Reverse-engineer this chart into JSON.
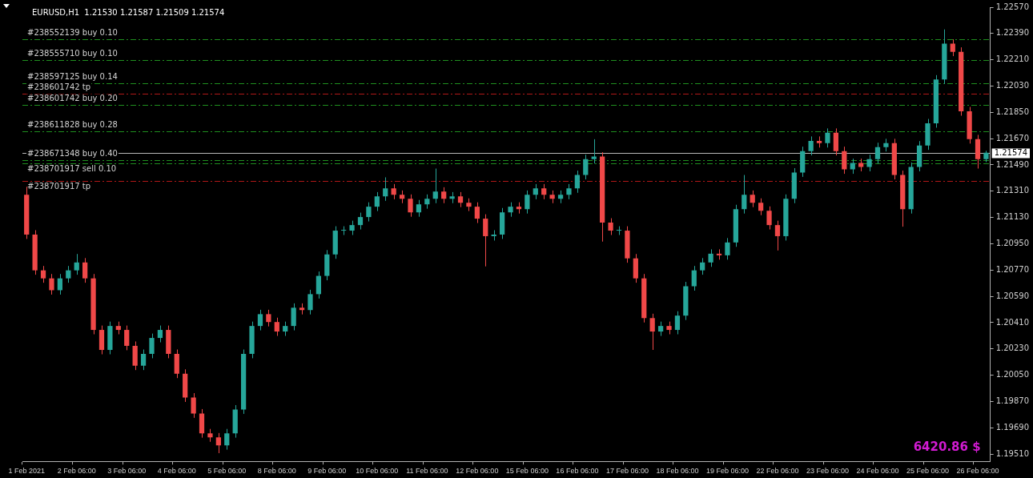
{
  "chart_data": {
    "type": "candlestick",
    "title": "EURUSD,H1  1.21530 1.21587 1.21509 1.21574",
    "annotations": [
      "6420.86 $"
    ],
    "categories": [
      "1 Feb 2021",
      null,
      null,
      null,
      null,
      null,
      "2 Feb 06:00",
      null,
      null,
      null,
      null,
      null,
      "3 Feb 06:00",
      null,
      null,
      null,
      null,
      null,
      "4 Feb 06:00",
      null,
      null,
      null,
      null,
      null,
      "5 Feb 06:00",
      null,
      null,
      null,
      null,
      null,
      "8 Feb 06:00",
      null,
      null,
      null,
      null,
      null,
      "9 Feb 06:00",
      null,
      null,
      null,
      null,
      null,
      "10 Feb 06:00",
      null,
      null,
      null,
      null,
      null,
      "11 Feb 06:00",
      null,
      null,
      null,
      null,
      null,
      "12 Feb 06:00",
      null,
      null,
      null,
      null,
      null,
      "15 Feb 06:00",
      null,
      null,
      null,
      null,
      null,
      "16 Feb 06:00",
      null,
      null,
      null,
      null,
      null,
      "17 Feb 06:00",
      null,
      null,
      null,
      null,
      null,
      "18 Feb 06:00",
      null,
      null,
      null,
      null,
      null,
      "19 Feb 06:00",
      null,
      null,
      null,
      null,
      null,
      "22 Feb 06:00",
      null,
      null,
      null,
      null,
      null,
      "23 Feb 06:00",
      null,
      null,
      null,
      null,
      null,
      "24 Feb 06:00",
      null,
      null,
      null,
      null,
      null,
      "25 Feb 06:00",
      null,
      null,
      null,
      null,
      null,
      "26 Feb 06:00",
      null
    ],
    "ohlc": [
      [
        1.21285,
        1.2134,
        1.20983,
        1.21013
      ],
      [
        1.21013,
        1.21043,
        1.20738,
        1.20768
      ],
      [
        1.20768,
        1.20798,
        1.20683,
        1.20713
      ],
      [
        1.20713,
        1.20743,
        1.20602,
        1.20632
      ],
      [
        1.20632,
        1.20743,
        1.20602,
        1.20713
      ],
      [
        1.20713,
        1.20798,
        1.20683,
        1.20768
      ],
      [
        1.20768,
        1.2088,
        1.20738,
        1.20822
      ],
      [
        1.20822,
        1.20852,
        1.20683,
        1.20713
      ],
      [
        1.20713,
        1.20743,
        1.2033,
        1.2036
      ],
      [
        1.2036,
        1.2039,
        1.20193,
        1.20223
      ],
      [
        1.20223,
        1.20417,
        1.20193,
        1.20387
      ],
      [
        1.20387,
        1.20417,
        1.2033,
        1.2036
      ],
      [
        1.2036,
        1.2039,
        1.20221,
        1.20251
      ],
      [
        1.20251,
        1.20281,
        1.20085,
        1.20115
      ],
      [
        1.20115,
        1.20226,
        1.20085,
        1.20196
      ],
      [
        1.20196,
        1.20335,
        1.20166,
        1.20305
      ],
      [
        1.20305,
        1.2039,
        1.20275,
        1.2036
      ],
      [
        1.2036,
        1.2039,
        1.20166,
        1.20196
      ],
      [
        1.20196,
        1.20226,
        1.2003,
        1.2006
      ],
      [
        1.2006,
        1.2009,
        1.19867,
        1.19897
      ],
      [
        1.19897,
        1.19927,
        1.19758,
        1.19788
      ],
      [
        1.19788,
        1.19818,
        1.19622,
        1.19652
      ],
      [
        1.19652,
        1.19682,
        1.19594,
        1.19624
      ],
      [
        1.19624,
        1.19654,
        1.19516,
        1.1957
      ],
      [
        1.1957,
        1.19682,
        1.1954,
        1.19652
      ],
      [
        1.19652,
        1.19845,
        1.19622,
        1.19815
      ],
      [
        1.19815,
        1.20226,
        1.19785,
        1.20196
      ],
      [
        1.20196,
        1.20417,
        1.20166,
        1.20387
      ],
      [
        1.20387,
        1.20498,
        1.20357,
        1.20468
      ],
      [
        1.20468,
        1.20498,
        1.20384,
        1.20414
      ],
      [
        1.20414,
        1.20444,
        1.20319,
        1.20349
      ],
      [
        1.20349,
        1.20417,
        1.20319,
        1.20387
      ],
      [
        1.20387,
        1.20542,
        1.20357,
        1.20512
      ],
      [
        1.20512,
        1.20542,
        1.20466,
        1.20496
      ],
      [
        1.20496,
        1.20635,
        1.20466,
        1.20605
      ],
      [
        1.20605,
        1.2076,
        1.20575,
        1.2073
      ],
      [
        1.2073,
        1.20907,
        1.207,
        1.20877
      ],
      [
        1.20877,
        1.2107,
        1.20847,
        1.2104
      ],
      [
        1.2104,
        1.2107,
        1.2101,
        1.2104
      ],
      [
        1.2104,
        1.21108,
        1.2101,
        1.21078
      ],
      [
        1.21078,
        1.21163,
        1.21048,
        1.21133
      ],
      [
        1.21133,
        1.21234,
        1.21103,
        1.21204
      ],
      [
        1.21204,
        1.21304,
        1.21174,
        1.21274
      ],
      [
        1.21274,
        1.21405,
        1.21244,
        1.21329
      ],
      [
        1.21329,
        1.21359,
        1.21255,
        1.21285
      ],
      [
        1.21285,
        1.21315,
        1.21228,
        1.21258
      ],
      [
        1.21258,
        1.21288,
        1.21135,
        1.21165
      ],
      [
        1.21165,
        1.2125,
        1.21135,
        1.2122
      ],
      [
        1.2122,
        1.21288,
        1.2119,
        1.21258
      ],
      [
        1.21258,
        1.21465,
        1.21228,
        1.21307
      ],
      [
        1.21307,
        1.21337,
        1.21228,
        1.21258
      ],
      [
        1.21258,
        1.21304,
        1.21228,
        1.21274
      ],
      [
        1.21274,
        1.21304,
        1.21201,
        1.21231
      ],
      [
        1.21231,
        1.21261,
        1.21174,
        1.21204
      ],
      [
        1.21204,
        1.21234,
        1.21092,
        1.21122
      ],
      [
        1.21122,
        1.21152,
        1.20795,
        1.21002
      ],
      [
        1.21002,
        1.21043,
        1.20972,
        1.21013
      ],
      [
        1.21013,
        1.21195,
        1.20983,
        1.21165
      ],
      [
        1.21165,
        1.21234,
        1.21135,
        1.21204
      ],
      [
        1.21204,
        1.21234,
        1.21157,
        1.21187
      ],
      [
        1.21187,
        1.21315,
        1.21157,
        1.21285
      ],
      [
        1.21285,
        1.21359,
        1.21255,
        1.21329
      ],
      [
        1.21329,
        1.21359,
        1.21255,
        1.21285
      ],
      [
        1.21285,
        1.21315,
        1.21228,
        1.21258
      ],
      [
        1.21258,
        1.21315,
        1.21228,
        1.21285
      ],
      [
        1.21285,
        1.21359,
        1.21255,
        1.21329
      ],
      [
        1.21329,
        1.21451,
        1.21299,
        1.21421
      ],
      [
        1.21421,
        1.2156,
        1.21391,
        1.2153
      ],
      [
        1.2153,
        1.21666,
        1.215,
        1.21547
      ],
      [
        1.21547,
        1.21577,
        1.20965,
        1.21095
      ],
      [
        1.21095,
        1.21125,
        1.2101,
        1.2104
      ],
      [
        1.2104,
        1.2107,
        1.2101,
        1.2104
      ],
      [
        1.2104,
        1.2107,
        1.2082,
        1.2085
      ],
      [
        1.2085,
        1.2088,
        1.20683,
        1.20713
      ],
      [
        1.20713,
        1.20743,
        1.20411,
        1.20441
      ],
      [
        1.20441,
        1.20471,
        1.20223,
        1.20349
      ],
      [
        1.20349,
        1.20417,
        1.20319,
        1.20387
      ],
      [
        1.20387,
        1.20417,
        1.2033,
        1.2036
      ],
      [
        1.2036,
        1.20488,
        1.2033,
        1.20458
      ],
      [
        1.20458,
        1.20689,
        1.20428,
        1.20659
      ],
      [
        1.20659,
        1.20798,
        1.20629,
        1.20768
      ],
      [
        1.20768,
        1.20852,
        1.20738,
        1.20822
      ],
      [
        1.20822,
        1.20912,
        1.20792,
        1.20882
      ],
      [
        1.20882,
        1.20912,
        1.20841,
        1.20871
      ],
      [
        1.20871,
        1.20989,
        1.20841,
        1.20959
      ],
      [
        1.20959,
        1.21217,
        1.20929,
        1.21187
      ],
      [
        1.21187,
        1.21421,
        1.21157,
        1.21285
      ],
      [
        1.21285,
        1.21315,
        1.21201,
        1.21231
      ],
      [
        1.21231,
        1.21261,
        1.21146,
        1.21176
      ],
      [
        1.21176,
        1.21206,
        1.21048,
        1.21078
      ],
      [
        1.21078,
        1.21108,
        1.20904,
        1.21002
      ],
      [
        1.21002,
        1.21288,
        1.20972,
        1.21258
      ],
      [
        1.21258,
        1.21468,
        1.21228,
        1.21438
      ],
      [
        1.21438,
        1.21615,
        1.21408,
        1.21585
      ],
      [
        1.21585,
        1.21685,
        1.21555,
        1.21655
      ],
      [
        1.21655,
        1.21685,
        1.21609,
        1.21639
      ],
      [
        1.21639,
        1.2174,
        1.21609,
        1.2171
      ],
      [
        1.2171,
        1.2174,
        1.21555,
        1.21585
      ],
      [
        1.21585,
        1.21615,
        1.21429,
        1.21459
      ],
      [
        1.21459,
        1.21533,
        1.21429,
        1.21503
      ],
      [
        1.21503,
        1.21533,
        1.21446,
        1.21476
      ],
      [
        1.21476,
        1.2156,
        1.21446,
        1.2153
      ],
      [
        1.2153,
        1.21642,
        1.215,
        1.21612
      ],
      [
        1.21612,
        1.21669,
        1.21582,
        1.21639
      ],
      [
        1.21639,
        1.21669,
        1.21391,
        1.21421
      ],
      [
        1.21421,
        1.21451,
        1.21067,
        1.21187
      ],
      [
        1.21187,
        1.21506,
        1.21157,
        1.21476
      ],
      [
        1.21476,
        1.21653,
        1.21446,
        1.21623
      ],
      [
        1.21623,
        1.21805,
        1.21593,
        1.21775
      ],
      [
        1.21775,
        1.22105,
        1.21745,
        1.22075
      ],
      [
        1.22075,
        1.22418,
        1.22045,
        1.2232
      ],
      [
        1.2232,
        1.2235,
        1.22235,
        1.22265
      ],
      [
        1.22265,
        1.22295,
        1.21827,
        1.21857
      ],
      [
        1.21857,
        1.21887,
        1.21636,
        1.21666
      ],
      [
        1.21666,
        1.21696,
        1.21465,
        1.2153
      ],
      [
        1.2153,
        1.21587,
        1.21509,
        1.21574
      ]
    ],
    "colors": [
      "#f04848",
      "#f04848",
      "#f04848",
      "#f04848",
      "#26a69a",
      "#26a69a",
      "#26a69a",
      "#f04848",
      "#f04848",
      "#f04848",
      "#26a69a",
      "#f04848",
      "#f04848",
      "#f04848",
      "#26a69a",
      "#26a69a",
      "#26a69a",
      "#f04848",
      "#f04848",
      "#f04848",
      "#f04848",
      "#f04848",
      "#f04848",
      "#f04848",
      "#26a69a",
      "#26a69a",
      "#26a69a",
      "#26a69a",
      "#26a69a",
      "#f04848",
      "#f04848",
      "#26a69a",
      "#26a69a",
      "#f04848",
      "#26a69a",
      "#26a69a",
      "#26a69a",
      "#26a69a",
      "#26a69a",
      "#26a69a",
      "#26a69a",
      "#26a69a",
      "#26a69a",
      "#26a69a",
      "#f04848",
      "#f04848",
      "#f04848",
      "#26a69a",
      "#26a69a",
      "#26a69a",
      "#f04848",
      "#26a69a",
      "#f04848",
      "#f04848",
      "#f04848",
      "#f04848",
      "#26a69a",
      "#26a69a",
      "#26a69a",
      "#f04848",
      "#26a69a",
      "#26a69a",
      "#f04848",
      "#f04848",
      "#26a69a",
      "#26a69a",
      "#26a69a",
      "#26a69a",
      "#26a69a",
      "#f04848",
      "#f04848",
      "#26a69a",
      "#f04848",
      "#f04848",
      "#f04848",
      "#f04848",
      "#26a69a",
      "#f04848",
      "#26a69a",
      "#26a69a",
      "#26a69a",
      "#26a69a",
      "#26a69a",
      "#f04848",
      "#26a69a",
      "#26a69a",
      "#26a69a",
      "#f04848",
      "#f04848",
      "#f04848",
      "#f04848",
      "#26a69a",
      "#26a69a",
      "#26a69a",
      "#26a69a",
      "#f04848",
      "#26a69a",
      "#f04848",
      "#f04848",
      "#26a69a",
      "#f04848",
      "#26a69a",
      "#26a69a",
      "#26a69a",
      "#f04848",
      "#f04848",
      "#26a69a",
      "#26a69a",
      "#26a69a",
      "#26a69a",
      "#26a69a",
      "#f04848",
      "#f04848",
      "#f04848",
      "#f04848",
      "#26a69a"
    ],
    "ylim": [
      1.1946,
      1.2257
    ],
    "yticks": [
      {
        "value": 1.2257,
        "label": "1.22570"
      },
      {
        "value": 1.2239,
        "label": "1.22390"
      },
      {
        "value": 1.2221,
        "label": "1.22210"
      },
      {
        "value": 1.2203,
        "label": "1.22030"
      },
      {
        "value": 1.2185,
        "label": "1.21850"
      },
      {
        "value": 1.2167,
        "label": "1.21670"
      },
      {
        "value": 1.2149,
        "label": "1.21490"
      },
      {
        "value": 1.2131,
        "label": "1.21310"
      },
      {
        "value": 1.2113,
        "label": "1.21130"
      },
      {
        "value": 1.2095,
        "label": "1.20950"
      },
      {
        "value": 1.2077,
        "label": "1.20770"
      },
      {
        "value": 1.2059,
        "label": "1.20590"
      },
      {
        "value": 1.2041,
        "label": "1.20410"
      },
      {
        "value": 1.2023,
        "label": "1.20230"
      },
      {
        "value": 1.2005,
        "label": "1.20050"
      },
      {
        "value": 1.1987,
        "label": "1.19870"
      },
      {
        "value": 1.1969,
        "label": "1.19690"
      },
      {
        "value": 1.1951,
        "label": "1.19510"
      }
    ],
    "ref_lines": [
      {
        "axis": "y",
        "value": 1.2235,
        "label": "#238552139 buy 0.10",
        "color": "#1f8f1f",
        "line_style": "dashed"
      },
      {
        "axis": "y",
        "value": 1.2221,
        "label": "#238555710 buy 0.10",
        "color": "#1f8f1f",
        "line_style": "dashed"
      },
      {
        "axis": "y",
        "value": 1.2205,
        "label": "#238597125 buy 0.14",
        "color": "#1f8f1f",
        "line_style": "dashed"
      },
      {
        "axis": "y",
        "value": 1.2198,
        "label": "#238601742 tp",
        "color": "#b01818",
        "line_style": "dashed"
      },
      {
        "axis": "y",
        "value": 1.219,
        "label": "#238601742 buy 0.20",
        "color": "#1f8f1f",
        "line_style": "dashed"
      },
      {
        "axis": "y",
        "value": 1.2172,
        "label": "#238611828 buy 0.28",
        "color": "#1f8f1f",
        "line_style": "dashed"
      },
      {
        "axis": "y",
        "value": 1.21574,
        "label": "1.21574",
        "color": "#b8b8b8",
        "line_style": "solid"
      },
      {
        "axis": "y",
        "value": 1.2152,
        "label": "#238671348 buy 0.40",
        "color": "#1f8f1f",
        "line_style": "dashed"
      },
      {
        "axis": "y",
        "value": 1.215,
        "label": "#238701917 sell 0.10",
        "color": "#1f8f1f",
        "line_style": "dashed"
      },
      {
        "axis": "y",
        "value": 1.2138,
        "label": "#238701917 tp",
        "color": "#b01818",
        "line_style": "dashed"
      }
    ]
  }
}
